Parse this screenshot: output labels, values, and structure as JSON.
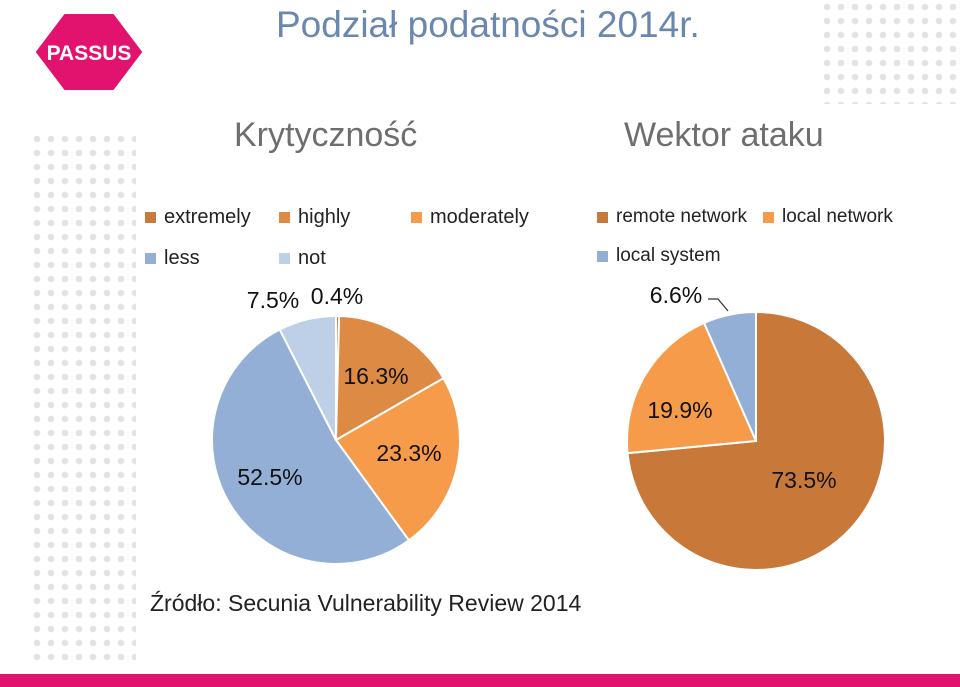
{
  "page_title": "Podział podatności 2014r.",
  "logo_text": "PASSUS",
  "source_text": "Źródło: Secunia Vulnerability Review 2014",
  "colors": {
    "brand": "#e2136e",
    "title": "#6a87ae"
  },
  "chart_data": [
    {
      "type": "pie",
      "title": "Krytyczność",
      "legend_position": "top",
      "slices": [
        {
          "label": "extremely",
          "value": 0.4,
          "value_label": "0.4%",
          "color": "#c97a3a"
        },
        {
          "label": "highly",
          "value": 16.3,
          "value_label": "16.3%",
          "color": "#dd8a44"
        },
        {
          "label": "moderately",
          "value": 23.3,
          "value_label": "23.3%",
          "color": "#f59b4a"
        },
        {
          "label": "less",
          "value": 52.5,
          "value_label": "52.5%",
          "color": "#93afd6"
        },
        {
          "label": "not",
          "value": 7.5,
          "value_label": "7.5%",
          "color": "#bdd0e8"
        }
      ]
    },
    {
      "type": "pie",
      "title": "Wektor ataku",
      "legend_position": "top",
      "slices": [
        {
          "label": "remote network",
          "value": 73.5,
          "value_label": "73.5%",
          "color": "#c8793a"
        },
        {
          "label": "local network",
          "value": 19.9,
          "value_label": "19.9%",
          "color": "#f59b4a"
        },
        {
          "label": "local system",
          "value": 6.6,
          "value_label": "6.6%",
          "color": "#93afd6"
        }
      ]
    }
  ]
}
